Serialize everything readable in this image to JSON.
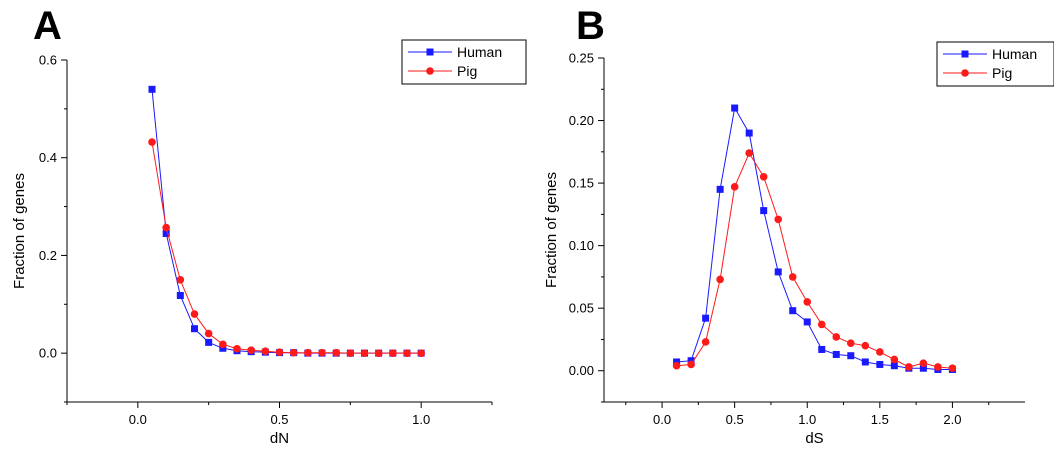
{
  "panels": [
    {
      "letter": "A"
    },
    {
      "letter": "B"
    }
  ],
  "colors": {
    "human": "#1a1aff",
    "pig": "#ff1a1a",
    "axis": "#000000"
  },
  "chart_data": [
    {
      "type": "line",
      "panel": "A",
      "xlabel": "dN",
      "ylabel": "Fraction of genes",
      "xlim": [
        -0.25,
        1.25
      ],
      "ylim": [
        -0.1,
        0.6
      ],
      "xticks": [
        0.0,
        0.5,
        1.0
      ],
      "xtick_labels": [
        "0.0",
        "0.5",
        "1.0"
      ],
      "yticks": [
        0.0,
        0.2,
        0.4,
        0.6
      ],
      "ytick_labels": [
        "0.0",
        "0.2",
        "0.4",
        "0.6"
      ],
      "grid": false,
      "legend_position": "top-right",
      "series": [
        {
          "name": "Human",
          "marker": "square",
          "color": "#1a1aff",
          "x": [
            0.05,
            0.1,
            0.15,
            0.2,
            0.25,
            0.3,
            0.35,
            0.4,
            0.45,
            0.5,
            0.55,
            0.6,
            0.65,
            0.7,
            0.75,
            0.8,
            0.85,
            0.9,
            0.95,
            1.0
          ],
          "y": [
            0.54,
            0.245,
            0.118,
            0.05,
            0.022,
            0.01,
            0.005,
            0.003,
            0.002,
            0.001,
            0.001,
            0.0,
            0.0,
            0.0,
            0.0,
            0.0,
            0.0,
            0.0,
            0.0,
            0.0
          ]
        },
        {
          "name": "Pig",
          "marker": "circle",
          "color": "#ff1a1a",
          "x": [
            0.05,
            0.1,
            0.15,
            0.2,
            0.25,
            0.3,
            0.35,
            0.4,
            0.45,
            0.5,
            0.55,
            0.6,
            0.65,
            0.7,
            0.75,
            0.8,
            0.85,
            0.9,
            0.95,
            1.0
          ],
          "y": [
            0.432,
            0.257,
            0.15,
            0.08,
            0.04,
            0.018,
            0.009,
            0.006,
            0.004,
            0.002,
            0.001,
            0.001,
            0.001,
            0.001,
            0.0,
            0.0,
            0.0,
            0.0,
            0.0,
            0.0
          ]
        }
      ]
    },
    {
      "type": "line",
      "panel": "B",
      "xlabel": "dS",
      "ylabel": "Fraction of genes",
      "xlim": [
        -0.4,
        2.5
      ],
      "ylim": [
        -0.025,
        0.25
      ],
      "xticks": [
        0.0,
        0.5,
        1.0,
        1.5,
        2.0
      ],
      "xtick_labels": [
        "0.0",
        "0.5",
        "1.0",
        "1.5",
        "2.0"
      ],
      "yticks": [
        0.0,
        0.05,
        0.1,
        0.15,
        0.2,
        0.25
      ],
      "ytick_labels": [
        "0.00",
        "0.05",
        "0.10",
        "0.15",
        "0.20",
        "0.25"
      ],
      "grid": false,
      "legend_position": "top-right",
      "series": [
        {
          "name": "Human",
          "marker": "square",
          "color": "#1a1aff",
          "x": [
            0.1,
            0.2,
            0.3,
            0.4,
            0.5,
            0.6,
            0.7,
            0.8,
            0.9,
            1.0,
            1.1,
            1.2,
            1.3,
            1.4,
            1.5,
            1.6,
            1.7,
            1.8,
            1.9,
            2.0
          ],
          "y": [
            0.007,
            0.008,
            0.042,
            0.145,
            0.21,
            0.19,
            0.128,
            0.079,
            0.048,
            0.039,
            0.017,
            0.013,
            0.012,
            0.007,
            0.005,
            0.004,
            0.002,
            0.002,
            0.001,
            0.001
          ]
        },
        {
          "name": "Pig",
          "marker": "circle",
          "color": "#ff1a1a",
          "x": [
            0.1,
            0.2,
            0.3,
            0.4,
            0.5,
            0.6,
            0.7,
            0.8,
            0.9,
            1.0,
            1.1,
            1.2,
            1.3,
            1.4,
            1.5,
            1.6,
            1.7,
            1.8,
            1.9,
            2.0
          ],
          "y": [
            0.004,
            0.005,
            0.023,
            0.073,
            0.147,
            0.174,
            0.155,
            0.121,
            0.075,
            0.055,
            0.037,
            0.027,
            0.022,
            0.02,
            0.015,
            0.009,
            0.003,
            0.006,
            0.003,
            0.002
          ]
        }
      ]
    }
  ]
}
